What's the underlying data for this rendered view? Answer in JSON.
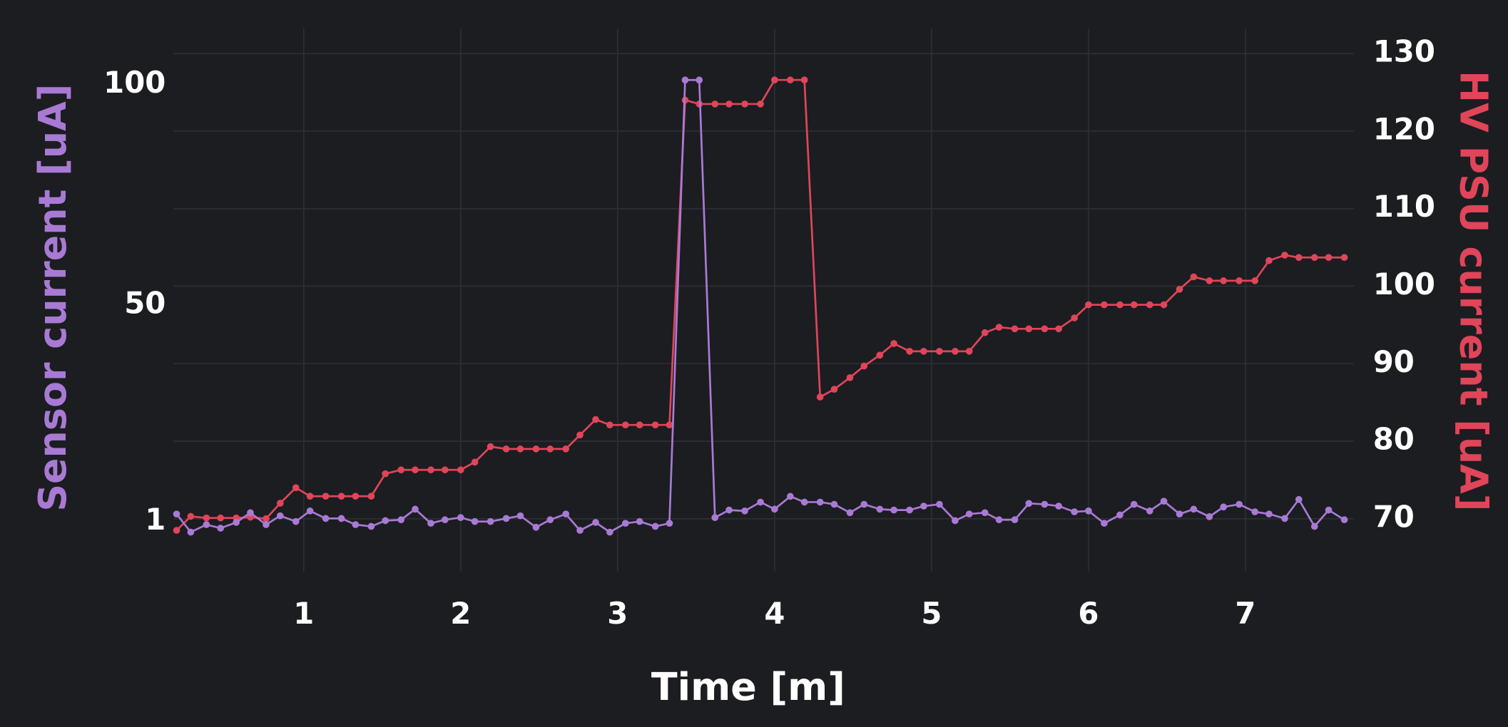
{
  "chart_data": {
    "type": "line",
    "xlabel": "Time [m]",
    "ylabel": "Sensor current [uA]",
    "y2label": "HV PSU current [uA]",
    "grid": true,
    "xlim": [
      0.17,
      7.69
    ],
    "ylim": [
      -10.3,
      112.6
    ],
    "y2lim": [
      63.2,
      133.2
    ],
    "xticks": [
      1,
      2,
      3,
      4,
      5,
      6,
      7
    ],
    "yticks": [
      1,
      50,
      100
    ],
    "y2ticks": [
      70,
      80,
      90,
      100,
      110,
      120,
      130
    ],
    "x": [
      0.19,
      0.28,
      0.38,
      0.47,
      0.57,
      0.66,
      0.76,
      0.85,
      0.95,
      1.04,
      1.14,
      1.24,
      1.33,
      1.43,
      1.52,
      1.62,
      1.71,
      1.81,
      1.9,
      2.0,
      2.09,
      2.19,
      2.29,
      2.38,
      2.48,
      2.57,
      2.67,
      2.76,
      2.86,
      2.95,
      3.05,
      3.14,
      3.24,
      3.33,
      3.43,
      3.52,
      3.62,
      3.71,
      3.81,
      3.91,
      4.0,
      4.1,
      4.19,
      4.29,
      4.38,
      4.48,
      4.57,
      4.67,
      4.76,
      4.86,
      4.95,
      5.05,
      5.15,
      5.24,
      5.34,
      5.43,
      5.53,
      5.62,
      5.72,
      5.81,
      5.91,
      6.0,
      6.1,
      6.2,
      6.29,
      6.39,
      6.48,
      6.58,
      6.67,
      6.77,
      6.86,
      6.96,
      7.06,
      7.15,
      7.25,
      7.34,
      7.44,
      7.53,
      7.63
    ],
    "series": [
      {
        "color": "#e0455a",
        "axis": "y2",
        "values": [
          68.5,
          70.3,
          70.1,
          70.1,
          70.1,
          70.2,
          70.0,
          72.0,
          74.0,
          72.9,
          72.9,
          72.9,
          72.9,
          72.9,
          75.8,
          76.3,
          76.3,
          76.3,
          76.3,
          76.3,
          77.3,
          79.3,
          79.0,
          79.0,
          79.0,
          79.0,
          79.0,
          80.8,
          82.8,
          82.1,
          82.1,
          82.1,
          82.1,
          82.1,
          124.0,
          123.5,
          123.5,
          123.5,
          123.5,
          123.5,
          126.6,
          126.6,
          126.6,
          85.7,
          86.7,
          88.2,
          89.7,
          91.1,
          92.6,
          91.6,
          91.6,
          91.6,
          91.6,
          91.6,
          94.0,
          94.7,
          94.5,
          94.5,
          94.5,
          94.5,
          95.9,
          97.6,
          97.6,
          97.6,
          97.6,
          97.6,
          97.6,
          99.6,
          101.2,
          100.7,
          100.7,
          100.7,
          100.7,
          103.3,
          104.0,
          103.7,
          103.7,
          103.7,
          103.7
        ]
      },
      {
        "color": "#a97ad4",
        "values": [
          2.7,
          -1.4,
          0.3,
          -0.5,
          0.8,
          3.0,
          0.3,
          2.3,
          1.0,
          3.4,
          1.7,
          1.7,
          0.3,
          -0.1,
          1.2,
          1.4,
          3.8,
          0.6,
          1.4,
          1.9,
          1.0,
          1.0,
          1.7,
          2.3,
          -0.3,
          1.4,
          2.7,
          -1.0,
          0.8,
          -1.4,
          0.6,
          1.0,
          -0.1,
          0.6,
          101,
          101,
          1.9,
          3.6,
          3.4,
          5.4,
          3.8,
          6.7,
          5.4,
          5.4,
          4.9,
          3.0,
          4.9,
          3.8,
          3.6,
          3.6,
          4.5,
          4.9,
          1.2,
          2.7,
          3.0,
          1.4,
          1.4,
          5.1,
          4.9,
          4.5,
          3.2,
          3.4,
          0.6,
          2.5,
          4.9,
          3.4,
          5.6,
          2.7,
          3.8,
          2.1,
          4.3,
          4.9,
          3.2,
          2.7,
          1.7,
          6.0,
          -0.1,
          3.6,
          1.4
        ]
      }
    ]
  }
}
